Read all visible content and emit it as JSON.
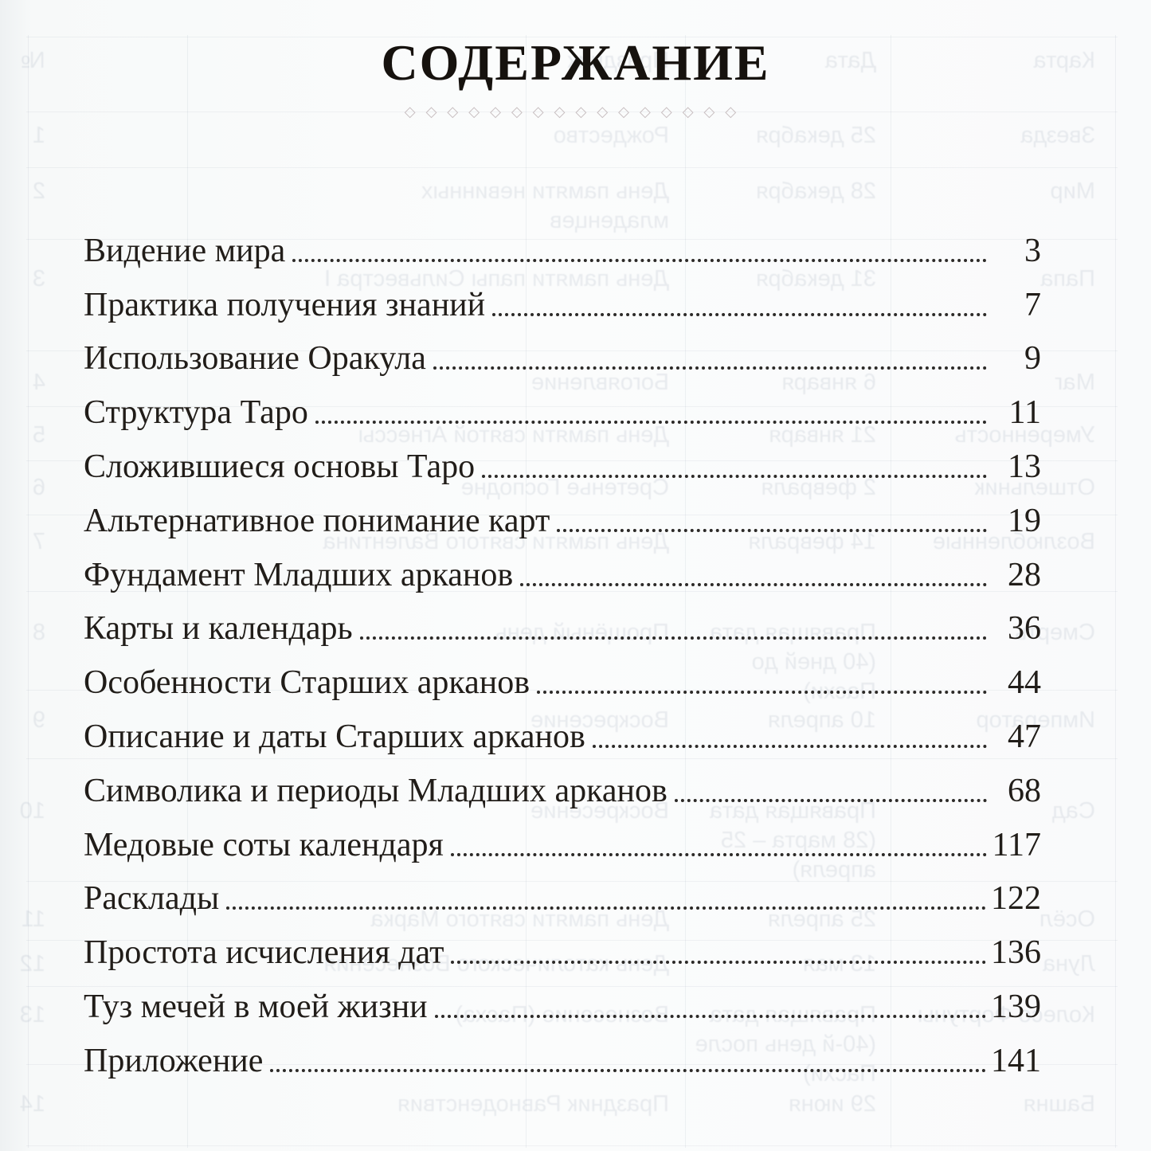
{
  "title": "СОДЕРЖАНИЕ",
  "ornament": "◇◇◇◇◇◇◇◇◇◇◇◇◇◇◇◇",
  "toc": {
    "entries": [
      {
        "label": "Видение мира",
        "page": "3"
      },
      {
        "label": "Практика получения знаний",
        "page": "7"
      },
      {
        "label": "Использование Оракула",
        "page": "9"
      },
      {
        "label": "Структура Таро",
        "page": "11"
      },
      {
        "label": "Сложившиеся основы Таро",
        "page": "13"
      },
      {
        "label": "Альтернативное понимание карт",
        "page": "19"
      },
      {
        "label": "Фундамент Младших арканов",
        "page": "28"
      },
      {
        "label": "Карты и календарь",
        "page": "36"
      },
      {
        "label": "Особенности Старших арканов",
        "page": "44"
      },
      {
        "label": "Описание и даты Старших арканов",
        "page": "47"
      },
      {
        "label": "Символика и периоды Младших арканов",
        "page": "68"
      },
      {
        "label": "Медовые соты календаря",
        "page": "117"
      },
      {
        "label": "Расклады",
        "page": "122"
      },
      {
        "label": "Простота исчисления дат",
        "page": "136"
      },
      {
        "label": "Туз мечей в моей жизни",
        "page": "139"
      },
      {
        "label": "Приложение",
        "page": "141"
      }
    ]
  },
  "ghost": {
    "header": {
      "card": "Карта",
      "date": "Дата",
      "holiday": "Праздник",
      "num": "№"
    },
    "rows": [
      {
        "card": "Звезда",
        "date": "25 декабря",
        "holiday": "Рождество",
        "num": "1"
      },
      {
        "card": "Мир",
        "date": "28 декабря",
        "holiday": "День памяти невинных младенцев",
        "num": "2"
      },
      {
        "card": "Папа",
        "date": "31 декабря",
        "holiday": "День памяти папы Сильвестра I",
        "num": "3"
      },
      {
        "card": "Маг",
        "date": "6 января",
        "holiday": "Богоявление",
        "num": "4"
      },
      {
        "card": "Умеренность",
        "date": "21 января",
        "holiday": "День памяти святой Агнессы",
        "num": "5"
      },
      {
        "card": "Отшельник",
        "date": "2 февраля",
        "holiday": "Сретенье Господне",
        "num": "6"
      },
      {
        "card": "Возлюбленные",
        "date": "14 февраля",
        "holiday": "День памяти святого Валентина",
        "num": "7"
      },
      {
        "card": "Смерть",
        "date": "Правящая дата (40 дней до Пасхи)",
        "holiday": "Прощёный день",
        "num": "8"
      },
      {
        "card": "Император",
        "date": "10 апреля",
        "holiday": "Воскресение",
        "num": "9"
      },
      {
        "card": "Сад",
        "date": "Правящая дата (28 марта – 25 апреля)",
        "holiday": "Воскресение",
        "num": "10"
      },
      {
        "card": "Осёл",
        "date": "25 апреля",
        "holiday": "День памяти святого Марка",
        "num": "11"
      },
      {
        "card": "Луна",
        "date": "13 мая",
        "holiday": "День католического Вознесения",
        "num": "12"
      },
      {
        "card": "Колесо Фортуны",
        "date": "Правящая дата (40-й день после Пасхи)",
        "holiday": "Вознесение (Пасха)",
        "num": "13"
      },
      {
        "card": "Башня",
        "date": "29 июня",
        "holiday": "Праздник Равноденствия",
        "num": "14"
      }
    ]
  }
}
